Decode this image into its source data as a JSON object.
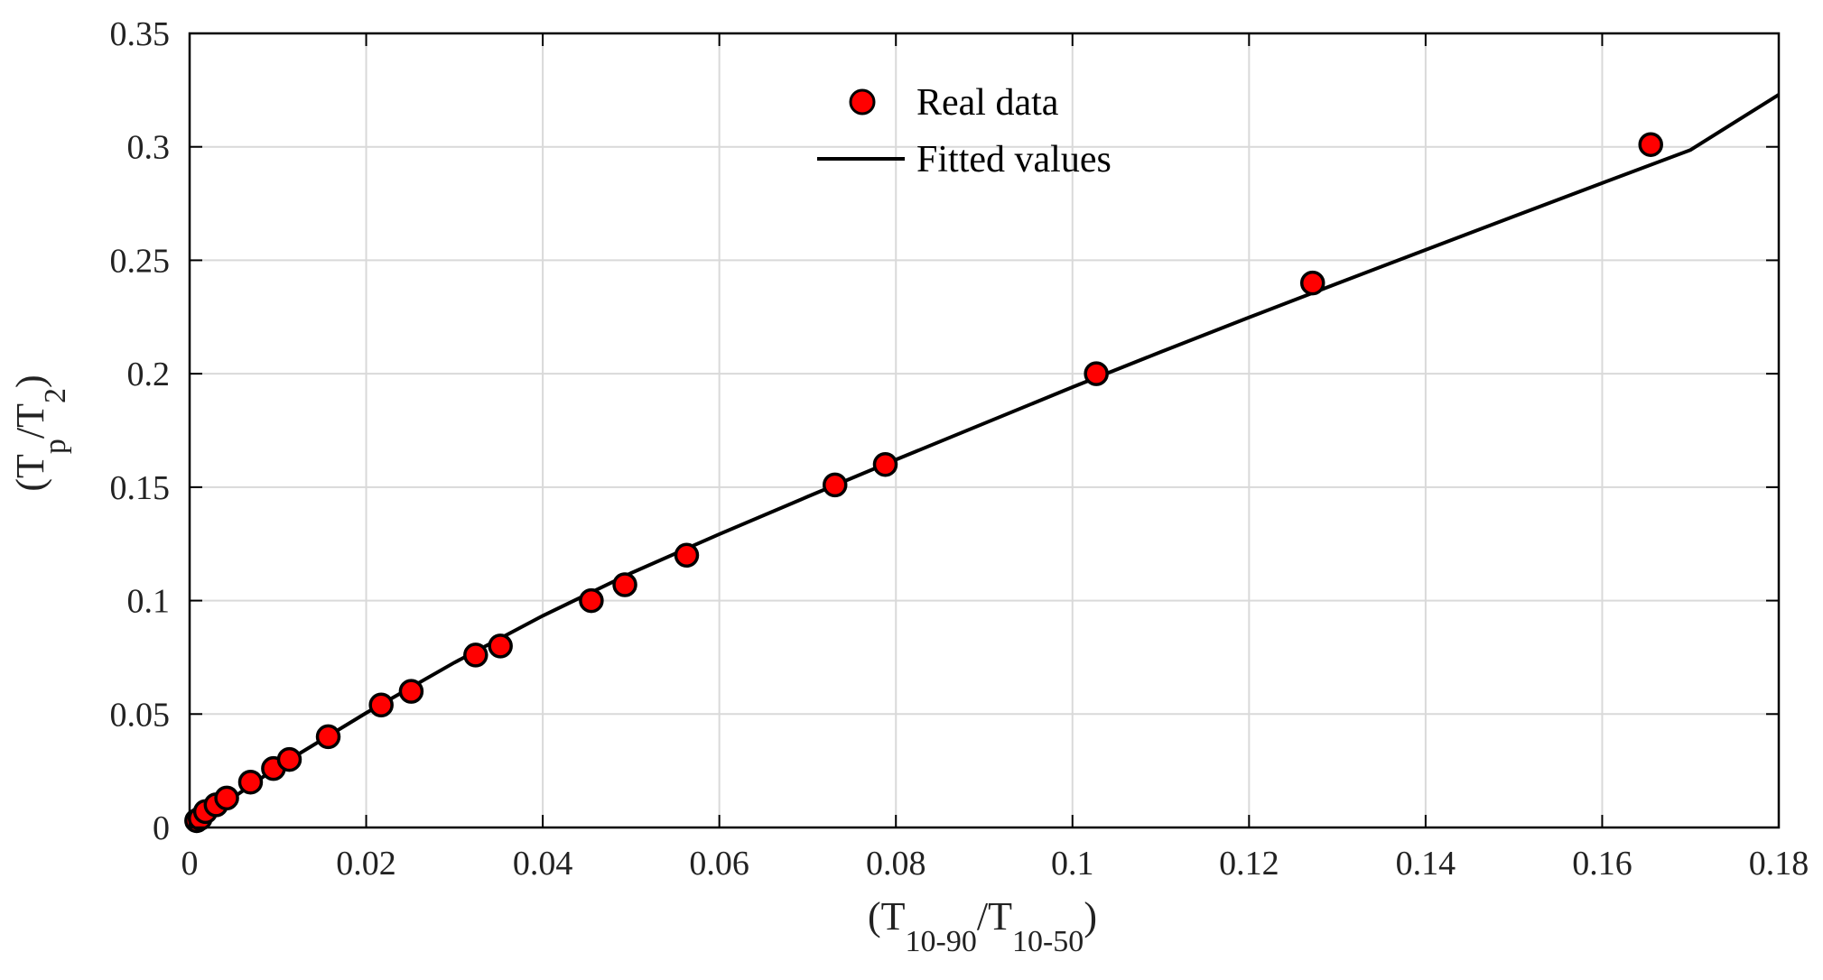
{
  "chart_data": {
    "type": "scatter",
    "title": "",
    "xlabel": {
      "open": "(T",
      "sub1": "10-90",
      "mid": "/T",
      "sub2": "10-50",
      "close": ")"
    },
    "ylabel": {
      "open": "(T",
      "sub1": "p",
      "mid": "/T",
      "sub2": "2",
      "close": ")"
    },
    "xlim": [
      0,
      0.18
    ],
    "ylim": [
      0,
      0.35
    ],
    "xticks": [
      0,
      0.02,
      0.04,
      0.06,
      0.08,
      0.1,
      0.12,
      0.14,
      0.16,
      0.18
    ],
    "xtick_labels": [
      "0",
      "0.02",
      "0.04",
      "0.06",
      "0.08",
      "0.1",
      "0.12",
      "0.14",
      "0.16",
      "0.18"
    ],
    "yticks": [
      0,
      0.05,
      0.1,
      0.15,
      0.2,
      0.25,
      0.3,
      0.35
    ],
    "ytick_labels": [
      "0",
      "0.05",
      "0.1",
      "0.15",
      "0.2",
      "0.25",
      "0.3",
      "0.35"
    ],
    "grid": true,
    "legend": {
      "position": "top-center",
      "entries": [
        "Real data",
        "Fitted values"
      ]
    },
    "series": [
      {
        "name": "Real data",
        "kind": "scatter",
        "color": "#ff0000",
        "edge_color": "#000000",
        "x": [
          0.0008,
          0.0012,
          0.0018,
          0.003,
          0.0042,
          0.0069,
          0.0095,
          0.0113,
          0.0157,
          0.0217,
          0.0251,
          0.0324,
          0.0352,
          0.0455,
          0.0493,
          0.0563,
          0.0731,
          0.0788,
          0.1027,
          0.1272,
          0.1655
        ],
        "y": [
          0.003,
          0.004,
          0.007,
          0.01,
          0.013,
          0.02,
          0.026,
          0.03,
          0.04,
          0.054,
          0.06,
          0.076,
          0.08,
          0.1,
          0.107,
          0.12,
          0.151,
          0.16,
          0.2,
          0.24,
          0.301
        ]
      },
      {
        "name": "Fitted values",
        "kind": "line",
        "color": "#000000",
        "x": [
          0,
          0.01,
          0.02,
          0.03,
          0.04,
          0.05,
          0.06,
          0.07,
          0.08,
          0.09,
          0.1,
          0.11,
          0.12,
          0.13,
          0.14,
          0.15,
          0.16,
          0.17,
          0.18
        ],
        "y": [
          0,
          0.0268,
          0.0505,
          0.0727,
          0.0933,
          0.1121,
          0.1293,
          0.1458,
          0.1621,
          0.1781,
          0.1941,
          0.2096,
          0.2248,
          0.2398,
          0.2546,
          0.2694,
          0.284,
          0.2986,
          0.323
        ]
      }
    ]
  }
}
